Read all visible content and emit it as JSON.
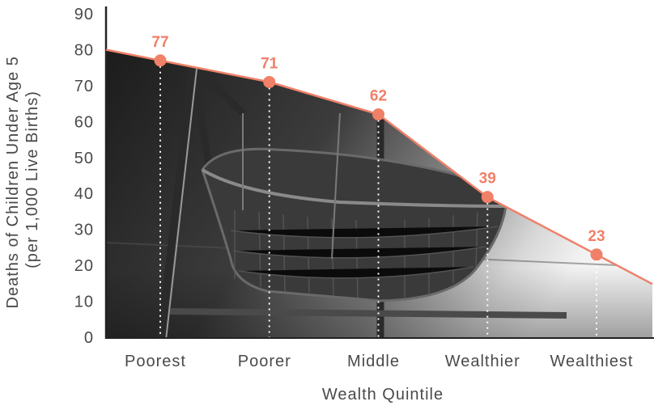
{
  "chart_data": {
    "type": "area",
    "categories": [
      "Poorest",
      "Poorer",
      "Middle",
      "Wealthier",
      "Wealthiest"
    ],
    "values": [
      77,
      71,
      62,
      39,
      23
    ],
    "xlabel": "Wealth Quintile",
    "ylabel_line1": "Deaths of Children Under Age 5",
    "ylabel_line2": "(per 1,000 Live Births)",
    "ylim": [
      0,
      90
    ],
    "yticks": [
      0,
      10,
      20,
      30,
      40,
      50,
      60,
      70,
      80,
      90
    ],
    "grid": false,
    "colors": {
      "line": "#f08068",
      "point": "#f08068",
      "label": "#f08068",
      "axis": "#222222",
      "text": "#4a4a4a",
      "fill_dark": "#1e1e1e",
      "fill_mid": "#6e6e6e"
    },
    "background": "photograph of a woven baby cradle (grayscale) filling the area under the line"
  }
}
